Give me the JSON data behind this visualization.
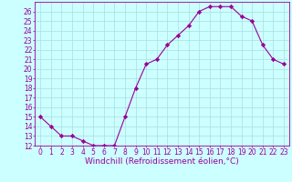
{
  "x": [
    0,
    1,
    2,
    3,
    4,
    5,
    6,
    7,
    8,
    9,
    10,
    11,
    12,
    13,
    14,
    15,
    16,
    17,
    18,
    19,
    20,
    21,
    22,
    23
  ],
  "y": [
    15,
    14,
    13,
    13,
    12.5,
    12,
    12,
    12,
    15,
    18,
    20.5,
    21,
    22.5,
    23.5,
    24.5,
    26,
    26.5,
    26.5,
    26.5,
    25.5,
    25,
    22.5,
    21,
    20.5
  ],
  "xlim": [
    -0.5,
    23.5
  ],
  "ylim": [
    12,
    27
  ],
  "yticks": [
    12,
    13,
    14,
    15,
    16,
    17,
    18,
    19,
    20,
    21,
    22,
    23,
    24,
    25,
    26
  ],
  "xticks": [
    0,
    1,
    2,
    3,
    4,
    5,
    6,
    7,
    8,
    9,
    10,
    11,
    12,
    13,
    14,
    15,
    16,
    17,
    18,
    19,
    20,
    21,
    22,
    23
  ],
  "xlabel": "Windchill (Refroidissement éolien,°C)",
  "line_color": "#990099",
  "marker": "D",
  "marker_size": 2.2,
  "bg_color": "#ccffff",
  "grid_color": "#aadddd",
  "tick_fontsize": 5.5,
  "xlabel_fontsize": 6.5
}
